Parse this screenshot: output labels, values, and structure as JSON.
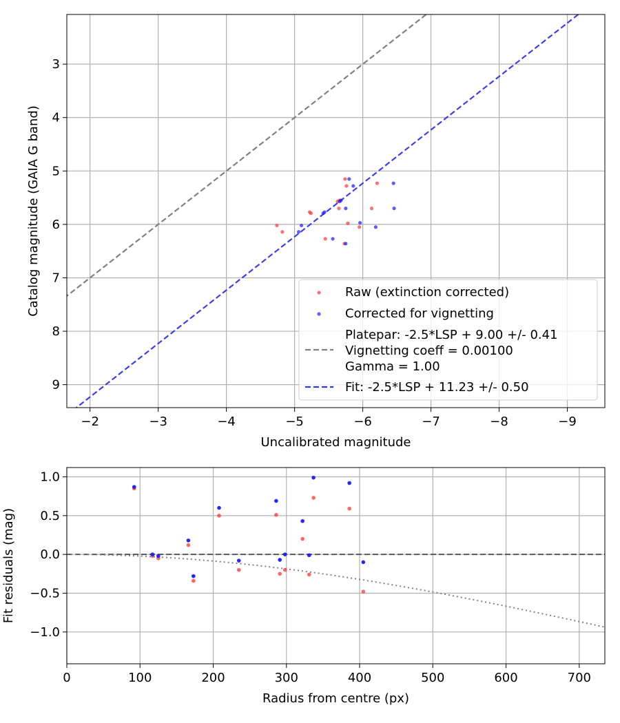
{
  "colors": {
    "raw": "#ff3333",
    "corrected": "#1a1aff",
    "platepar_line": "#808080",
    "fit_line": "#3333ee",
    "grid": "#b0b0b0"
  },
  "chart_data": [
    {
      "type": "scatter",
      "xlabel": "Uncalibrated magnitude",
      "ylabel": "Catalog magnitude (GAIA G band)",
      "xlim": [
        -1.66,
        -9.55
      ],
      "ylim": [
        9.43,
        2.07
      ],
      "x_inverted": true,
      "y_inverted": true,
      "grid": true,
      "legend_position": "lower-right",
      "xticks": [
        -2,
        -3,
        -4,
        -5,
        -6,
        -7,
        -8,
        -9
      ],
      "xtick_labels": [
        "−2",
        "−3",
        "−4",
        "−5",
        "−6",
        "−7",
        "−8",
        "−9"
      ],
      "yticks": [
        3,
        4,
        5,
        6,
        7,
        8,
        9
      ],
      "ytick_labels": [
        "3",
        "4",
        "5",
        "6",
        "7",
        "8",
        "9"
      ],
      "legend": {
        "raw": "Raw (extinction corrected)",
        "corrected": "Corrected for vignetting",
        "platepar_lines": [
          "Platepar: -2.5*LSP + 9.00 +/- 0.41",
          "Vignetting coeff = 0.00100",
          "Gamma = 1.00"
        ],
        "fit": "Fit: -2.5*LSP + 11.23 +/- 0.50"
      },
      "lines": [
        {
          "name": "platepar",
          "slope": 1.0,
          "intercept": 9.0,
          "style": "dashed"
        },
        {
          "name": "fit",
          "slope": 1.0,
          "intercept": 11.23,
          "style": "dashed"
        }
      ],
      "series": [
        {
          "name": "Raw (extinction corrected)",
          "points": [
            [
              -4.74,
              6.02
            ],
            [
              -4.82,
              6.14
            ],
            [
              -5.22,
              5.77
            ],
            [
              -5.24,
              5.79
            ],
            [
              -5.45,
              6.27
            ],
            [
              -5.63,
              5.57
            ],
            [
              -5.66,
              5.55
            ],
            [
              -5.65,
              5.7
            ],
            [
              -5.74,
              5.15
            ],
            [
              -5.76,
              5.28
            ],
            [
              -5.73,
              6.36
            ],
            [
              -5.78,
              5.98
            ],
            [
              -5.95,
              6.05
            ],
            [
              -6.13,
              5.7
            ],
            [
              -6.21,
              5.23
            ]
          ]
        },
        {
          "name": "Corrected for vignetting",
          "points": [
            [
              -5.06,
              6.14
            ],
            [
              -5.1,
              6.02
            ],
            [
              -5.42,
              5.79
            ],
            [
              -5.44,
              5.77
            ],
            [
              -5.56,
              6.27
            ],
            [
              -5.66,
              5.57
            ],
            [
              -5.68,
              5.55
            ],
            [
              -5.75,
              5.7
            ],
            [
              -5.75,
              6.36
            ],
            [
              -5.8,
              5.15
            ],
            [
              -5.86,
              5.28
            ],
            [
              -5.96,
              5.97
            ],
            [
              -6.19,
              6.05
            ],
            [
              -6.45,
              5.23
            ],
            [
              -6.46,
              5.7
            ]
          ]
        }
      ]
    },
    {
      "type": "scatter",
      "xlabel": "Radius from centre (px)",
      "ylabel": "Fit residuals (mag)",
      "xlim": [
        0,
        735
      ],
      "ylim": [
        -1.41,
        1.12
      ],
      "grid": true,
      "xticks": [
        0,
        100,
        200,
        300,
        400,
        500,
        600,
        700
      ],
      "xtick_labels": [
        "0",
        "100",
        "200",
        "300",
        "400",
        "500",
        "600",
        "700"
      ],
      "yticks": [
        1.0,
        0.5,
        0.0,
        -0.5,
        -1.0
      ],
      "ytick_labels": [
        "1.0",
        "0.5",
        "0.0",
        "−0.5",
        "−1.0"
      ],
      "reference_lines": [
        {
          "name": "zero",
          "y": 0,
          "style": "dashed"
        },
        {
          "name": "vignetting curve",
          "formula": "-2.5*log10(cos(arctan(0.00100*r))^4)",
          "style": "dotted"
        }
      ],
      "series": [
        {
          "name": "Raw (extinction corrected)",
          "points": [
            [
              92,
              0.85
            ],
            [
              117,
              -0.02
            ],
            [
              125,
              -0.05
            ],
            [
              166,
              0.12
            ],
            [
              173,
              -0.34
            ],
            [
              208,
              0.5
            ],
            [
              235,
              -0.2
            ],
            [
              286,
              0.51
            ],
            [
              291,
              -0.25
            ],
            [
              298,
              -0.2
            ],
            [
              322,
              0.2
            ],
            [
              331,
              -0.26
            ],
            [
              337,
              0.73
            ],
            [
              386,
              0.59
            ],
            [
              405,
              -0.48
            ]
          ]
        },
        {
          "name": "Corrected for vignetting",
          "points": [
            [
              92,
              0.87
            ],
            [
              117,
              0.0
            ],
            [
              125,
              -0.02
            ],
            [
              166,
              0.18
            ],
            [
              173,
              -0.28
            ],
            [
              208,
              0.6
            ],
            [
              235,
              -0.08
            ],
            [
              286,
              0.69
            ],
            [
              291,
              -0.07
            ],
            [
              298,
              0.0
            ],
            [
              322,
              0.43
            ],
            [
              331,
              -0.01
            ],
            [
              337,
              0.99
            ],
            [
              386,
              0.92
            ],
            [
              405,
              -0.1
            ]
          ]
        }
      ]
    }
  ]
}
